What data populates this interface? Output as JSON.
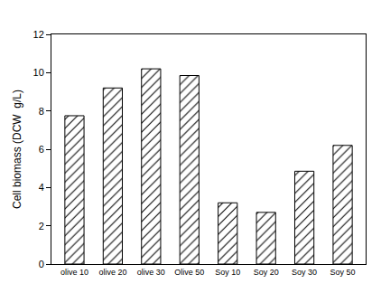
{
  "chart_data": {
    "type": "bar",
    "y_label": "Cell biomass (DCW  g/L)",
    "categories": [
      "olive 10",
      "olive 20",
      "olive 30",
      "Olive 50",
      "Soy 10",
      "Soy 20",
      "Soy 30",
      "Soy 50"
    ],
    "values": [
      7.75,
      9.2,
      10.2,
      9.85,
      3.2,
      2.7,
      4.85,
      6.2
    ],
    "color": "#000000",
    "ylim": [
      0,
      12
    ],
    "yticks": [
      0,
      2,
      4,
      6,
      8,
      10,
      12
    ],
    "grid": false
  }
}
